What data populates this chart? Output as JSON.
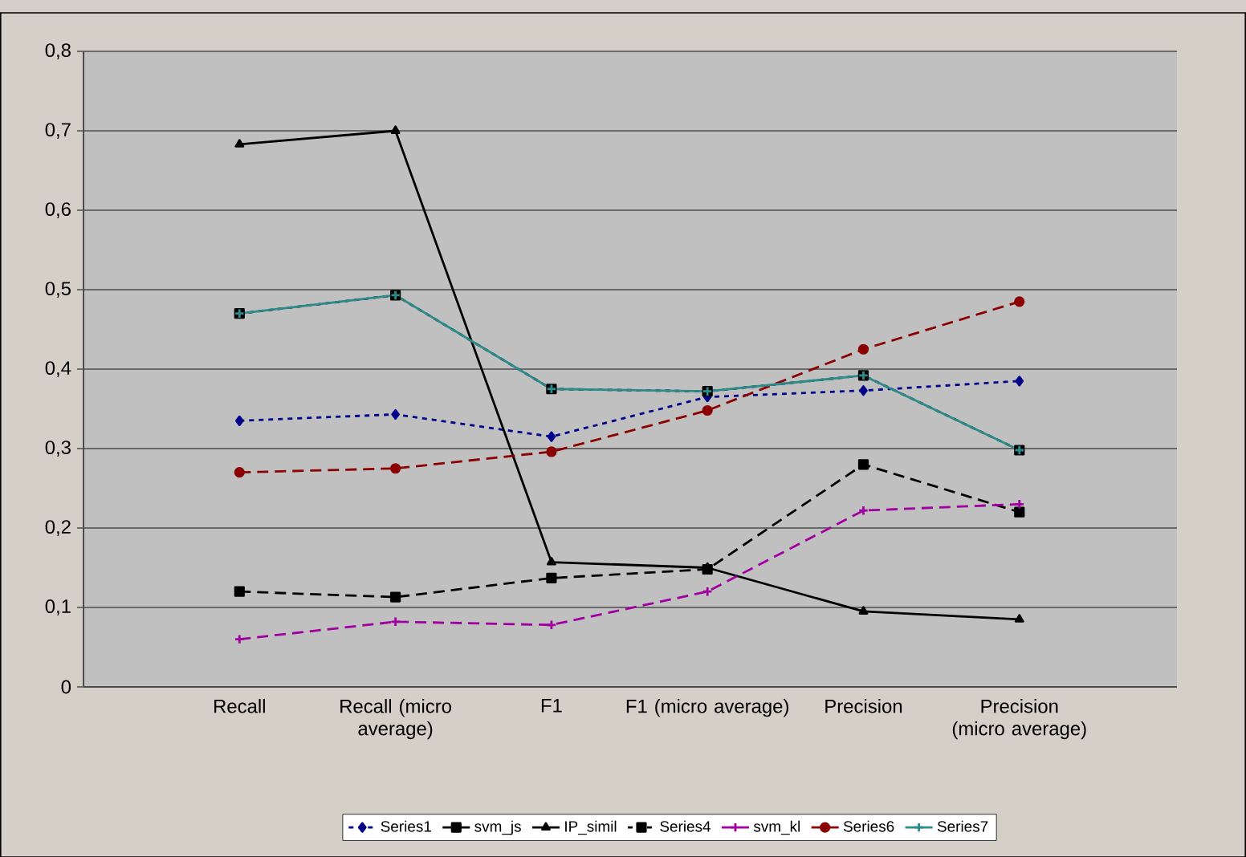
{
  "chart_data": {
    "type": "line",
    "categories": [
      "Recall",
      "Recall (micro average)",
      "F1",
      "F1 (micro average)",
      "Precision",
      "Precision (micro average)"
    ],
    "series": [
      {
        "name": "Series1",
        "color": "#00008b",
        "marker": "diamond",
        "line_style": "dotted",
        "values": [
          0.335,
          0.343,
          0.315,
          0.365,
          0.373,
          0.385
        ]
      },
      {
        "name": "svm_js",
        "color": "#000000",
        "marker": "square",
        "line_style": "dashed",
        "values": [
          0.12,
          0.113,
          0.137,
          0.148,
          0.28,
          0.22
        ]
      },
      {
        "name": "IP_simil",
        "color": "#000000",
        "marker": "triangle",
        "line_style": "solid",
        "values": [
          0.683,
          0.7,
          0.157,
          0.15,
          0.095,
          0.085
        ]
      },
      {
        "name": "Series4",
        "color": "#000000",
        "marker": "square",
        "line_style": "dotted",
        "values": [
          0.47,
          0.493,
          0.375,
          0.372,
          0.392,
          0.298
        ]
      },
      {
        "name": "svm_kl",
        "color": "#a000a0",
        "marker": "cross",
        "line_style": "dashed",
        "values": [
          0.06,
          0.082,
          0.078,
          0.12,
          0.222,
          0.23
        ]
      },
      {
        "name": "Series6",
        "color": "#8b0000",
        "marker": "circle",
        "line_style": "dashed",
        "values": [
          0.27,
          0.275,
          0.296,
          0.348,
          0.425,
          0.485
        ]
      },
      {
        "name": "Series7",
        "color": "#2e8b8b",
        "marker": "cross",
        "line_style": "solid",
        "values": [
          0.47,
          0.493,
          0.375,
          0.372,
          0.392,
          0.298
        ]
      }
    ],
    "ylim": [
      0,
      0.8
    ],
    "yticks": [
      0,
      {
        "value": 0.1,
        "label": "0,1"
      },
      {
        "value": 0.2,
        "label": "0,2"
      },
      {
        "value": 0.3,
        "label": "0,3"
      },
      {
        "value": 0.4,
        "label": "0,4"
      },
      {
        "value": 0.5,
        "label": "0,5"
      },
      {
        "value": 0.6,
        "label": "0,6"
      },
      {
        "value": 0.7,
        "label": "0,7"
      },
      {
        "value": 0.8,
        "label": "0,8"
      }
    ],
    "grid": "y",
    "legend": "bottom"
  }
}
